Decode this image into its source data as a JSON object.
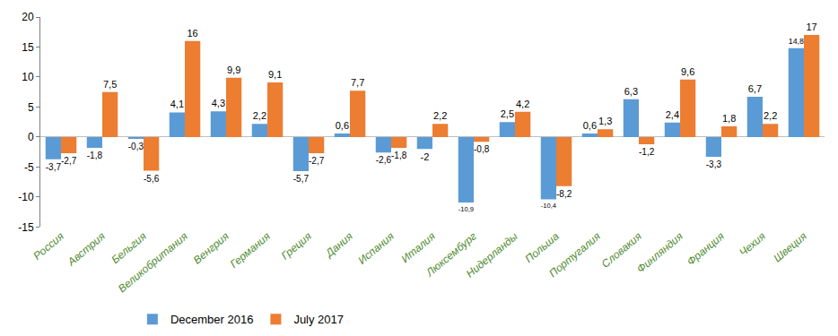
{
  "chart_data": {
    "type": "bar",
    "categories": [
      "Россия",
      "Австрия",
      "Бельгия",
      "Великобритания",
      "Венгрия",
      "Германия",
      "Греция",
      "Дания",
      "Испания",
      "Италия",
      "Люксембург",
      "Нидерланды",
      "Польша",
      "Португалия",
      "Словакия",
      "Финляндия",
      "Франция",
      "Чехия",
      "Швеция"
    ],
    "series": [
      {
        "name": "December 2016",
        "color": "#5b9bd5",
        "values": [
          -3.7,
          -1.8,
          -0.3,
          4.1,
          4.3,
          2.2,
          -5.7,
          0.6,
          -2.6,
          -2,
          -10.9,
          2.5,
          -10.4,
          0.6,
          6.3,
          2.4,
          -3.3,
          6.7,
          14.8
        ],
        "value_labels": [
          "-3,7",
          "-1,8",
          "-0,3",
          "4,1",
          "4,3",
          "2,2",
          "-5,7",
          "0,6",
          "-2,6",
          "-2",
          "-10,9",
          "2,5",
          "-10,4",
          "0,6",
          "6,3",
          "2,4",
          "-3,3",
          "6,7",
          "14,8"
        ]
      },
      {
        "name": "July 2017",
        "color": "#ed7d31",
        "values": [
          -2.7,
          7.5,
          -5.6,
          16,
          9.9,
          9.1,
          -2.7,
          7.7,
          -1.8,
          2.2,
          -0.8,
          4.2,
          -8.2,
          1.3,
          -1.2,
          9.6,
          1.8,
          2.2,
          17
        ],
        "value_labels": [
          "-2,7",
          "7,5",
          "-5,6",
          "16",
          "9,9",
          "9,1",
          "-2,7",
          "7,7",
          "-1,8",
          "2,2",
          "-0,8",
          "4,2",
          "-8,2",
          "1,3",
          "-1,2",
          "9,6",
          "1,8",
          "2,2",
          "17"
        ]
      }
    ],
    "ylim": [
      -15,
      20
    ],
    "yticks": [
      -15,
      -10,
      -5,
      0,
      5,
      10,
      15,
      20
    ],
    "grid": false,
    "legend": "bottom",
    "data_labels": true
  }
}
